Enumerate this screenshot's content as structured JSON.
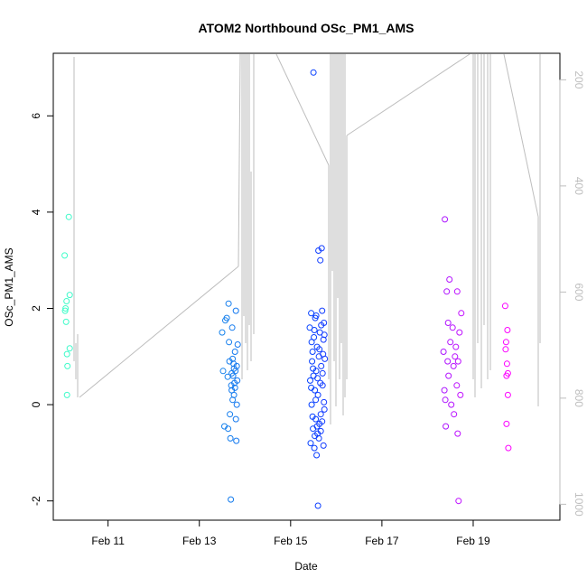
{
  "chart_data": {
    "type": "scatter",
    "title": "ATOM2 Northbound OSc_PM1_AMS",
    "xlabel": "Date",
    "ylabel": "OSc_PM1_AMS",
    "x_units": "days in February",
    "xlim": [
      9.8,
      20.9
    ],
    "ylim": [
      -2.4,
      7.3
    ],
    "x_ticks": [
      {
        "value": 11,
        "label": "Feb 11"
      },
      {
        "value": 13,
        "label": "Feb 13"
      },
      {
        "value": 15,
        "label": "Feb 15"
      },
      {
        "value": 17,
        "label": "Feb 17"
      },
      {
        "value": 19,
        "label": "Feb 19"
      }
    ],
    "y_ticks": [
      {
        "value": -2,
        "label": "-2"
      },
      {
        "value": 0,
        "label": "0"
      },
      {
        "value": 2,
        "label": "2"
      },
      {
        "value": 4,
        "label": "4"
      },
      {
        "value": 6,
        "label": "6"
      }
    ],
    "secondary_axis": {
      "side": "right",
      "reversed": true,
      "lim": [
        1030,
        150
      ],
      "color": "#BEBEBE",
      "ticks": [
        {
          "value": 200,
          "label": "200"
        },
        {
          "value": 400,
          "label": "400"
        },
        {
          "value": 600,
          "label": "600"
        },
        {
          "value": 800,
          "label": "800"
        },
        {
          "value": 1000,
          "label": "1000"
        }
      ]
    },
    "colors": {
      "axis": "#000000",
      "line": "#BEBEBE",
      "point_start": "#40FFC8",
      "point_mid": "#0040FF",
      "point_end": "#FF00FF"
    },
    "points": [
      [
        10.05,
        3.1
      ],
      [
        10.06,
        1.95
      ],
      [
        10.07,
        2.0
      ],
      [
        10.08,
        1.72
      ],
      [
        10.09,
        2.15
      ],
      [
        10.1,
        1.05
      ],
      [
        10.11,
        0.8
      ],
      [
        10.1,
        0.2
      ],
      [
        10.14,
        3.9
      ],
      [
        10.16,
        2.28
      ],
      [
        10.16,
        1.17
      ],
      [
        13.5,
        1.5
      ],
      [
        13.52,
        0.7
      ],
      [
        13.55,
        -0.45
      ],
      [
        13.57,
        1.75
      ],
      [
        13.6,
        1.8
      ],
      [
        13.62,
        0.58
      ],
      [
        13.63,
        -0.5
      ],
      [
        13.64,
        2.1
      ],
      [
        13.65,
        1.3
      ],
      [
        13.66,
        0.9
      ],
      [
        13.67,
        -0.2
      ],
      [
        13.68,
        -0.7
      ],
      [
        13.69,
        -1.97
      ],
      [
        13.7,
        0.4
      ],
      [
        13.71,
        0.3
      ],
      [
        13.72,
        1.6
      ],
      [
        13.73,
        0.1
      ],
      [
        13.74,
        0.6
      ],
      [
        13.75,
        0.85
      ],
      [
        13.76,
        0.2
      ],
      [
        13.77,
        0.45
      ],
      [
        13.78,
        1.1
      ],
      [
        13.79,
        0.7
      ],
      [
        13.8,
        -0.3
      ],
      [
        13.8,
        1.95
      ],
      [
        13.81,
        -0.75
      ],
      [
        13.82,
        0.0
      ],
      [
        13.83,
        0.5
      ],
      [
        13.84,
        1.25
      ],
      [
        13.71,
        0.65
      ],
      [
        13.73,
        0.95
      ],
      [
        13.76,
        0.75
      ],
      [
        13.78,
        0.35
      ],
      [
        13.82,
        0.8
      ],
      [
        15.42,
        1.6
      ],
      [
        15.43,
        0.5
      ],
      [
        15.44,
        -0.8
      ],
      [
        15.45,
        1.9
      ],
      [
        15.46,
        0.0
      ],
      [
        15.47,
        0.9
      ],
      [
        15.48,
        1.1
      ],
      [
        15.49,
        -0.5
      ],
      [
        15.5,
        0.6
      ],
      [
        15.5,
        6.9
      ],
      [
        15.51,
        1.4
      ],
      [
        15.52,
        -0.9
      ],
      [
        15.53,
        0.3
      ],
      [
        15.54,
        1.8
      ],
      [
        15.55,
        -0.3
      ],
      [
        15.56,
        0.7
      ],
      [
        15.57,
        -1.05
      ],
      [
        15.58,
        1.2
      ],
      [
        15.59,
        -0.6
      ],
      [
        15.6,
        -2.1
      ],
      [
        15.6,
        0.2
      ],
      [
        15.61,
        3.2
      ],
      [
        15.62,
        1.0
      ],
      [
        15.63,
        -0.4
      ],
      [
        15.64,
        1.5
      ],
      [
        15.65,
        3.0
      ],
      [
        15.66,
        -0.2
      ],
      [
        15.67,
        0.8
      ],
      [
        15.68,
        3.25
      ],
      [
        15.69,
        1.95
      ],
      [
        15.7,
        0.4
      ],
      [
        15.71,
        1.05
      ],
      [
        15.72,
        -0.85
      ],
      [
        15.73,
        1.7
      ],
      [
        15.74,
        -0.1
      ],
      [
        15.75,
        0.95
      ],
      [
        15.45,
        0.35
      ],
      [
        15.46,
        1.3
      ],
      [
        15.48,
        -0.25
      ],
      [
        15.49,
        0.75
      ],
      [
        15.52,
        1.55
      ],
      [
        15.53,
        -0.65
      ],
      [
        15.55,
        0.1
      ],
      [
        15.56,
        1.85
      ],
      [
        15.58,
        -0.45
      ],
      [
        15.59,
        0.55
      ],
      [
        15.62,
        -0.7
      ],
      [
        15.63,
        1.15
      ],
      [
        15.65,
        0.45
      ],
      [
        15.66,
        -0.55
      ],
      [
        15.67,
        1.65
      ],
      [
        15.69,
        -0.35
      ],
      [
        15.7,
        0.65
      ],
      [
        15.72,
        1.35
      ],
      [
        15.73,
        0.05
      ],
      [
        15.74,
        1.45
      ],
      [
        18.35,
        1.1
      ],
      [
        18.37,
        0.3
      ],
      [
        18.38,
        3.85
      ],
      [
        18.39,
        0.1
      ],
      [
        18.4,
        -0.45
      ],
      [
        18.42,
        2.35
      ],
      [
        18.44,
        0.9
      ],
      [
        18.45,
        1.7
      ],
      [
        18.46,
        0.6
      ],
      [
        18.48,
        2.6
      ],
      [
        18.5,
        1.3
      ],
      [
        18.52,
        0.0
      ],
      [
        18.55,
        1.6
      ],
      [
        18.57,
        0.8
      ],
      [
        18.58,
        -0.2
      ],
      [
        18.6,
        1.0
      ],
      [
        18.62,
        1.2
      ],
      [
        18.64,
        0.4
      ],
      [
        18.65,
        2.35
      ],
      [
        18.66,
        -0.6
      ],
      [
        18.67,
        0.9
      ],
      [
        18.68,
        -2.0
      ],
      [
        18.7,
        1.5
      ],
      [
        18.72,
        0.2
      ],
      [
        18.74,
        1.9
      ],
      [
        19.7,
        2.05
      ],
      [
        19.72,
        1.3
      ],
      [
        19.73,
        0.6
      ],
      [
        19.75,
        1.55
      ],
      [
        19.76,
        0.2
      ],
      [
        19.77,
        -0.9
      ],
      [
        19.74,
        0.85
      ],
      [
        19.71,
        1.15
      ],
      [
        19.73,
        -0.4
      ],
      [
        19.76,
        0.65
      ]
    ]
  }
}
